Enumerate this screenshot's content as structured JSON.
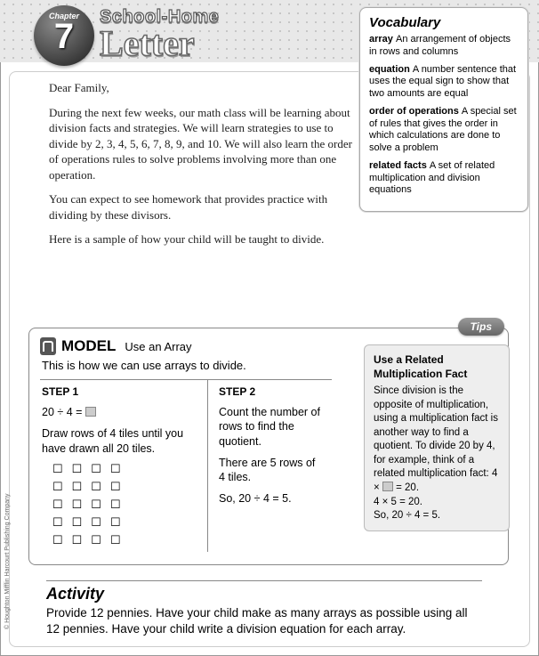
{
  "chapter": {
    "label": "Chapter",
    "number": "7"
  },
  "header": {
    "schoolhome": "School-Home",
    "letter": "Letter"
  },
  "vocab": {
    "title": "Vocabulary",
    "items": [
      {
        "term": "array",
        "def": "An arrangement of objects in rows and columns"
      },
      {
        "term": "equation",
        "def": "A number sentence that uses the equal sign to show that two amounts are equal"
      },
      {
        "term": "order of operations",
        "def": "A special set of rules that gives the order in which calculations are done to solve a problem"
      },
      {
        "term": "related facts",
        "def": "A set of related multiplication and division equations"
      }
    ]
  },
  "letter": {
    "greeting": "Dear Family,",
    "p1": "During the next few weeks, our math class will be learning about division facts and strategies. We will learn strategies to use to divide by 2, 3, 4, 5, 6, 7, 8, 9, and 10. We will also learn the order of operations rules to solve problems involving more than one operation.",
    "p2": "You can expect to see homework that provides practice with dividing by these divisors.",
    "p3": "Here is a sample of how your child will be taught to divide."
  },
  "model": {
    "title": "MODEL",
    "subtitle": "Use an Array",
    "intro": "This is how we can use arrays to divide.",
    "step1": {
      "label": "STEP 1",
      "eq": "20 ÷ 4 = ",
      "text": "Draw rows of 4 tiles until you have drawn all 20 tiles.",
      "array": {
        "rows": 5,
        "cols": 4
      }
    },
    "step2": {
      "label": "STEP 2",
      "p1": "Count the number of rows to find the quotient.",
      "p2": "There are 5 rows of 4 tiles.",
      "p3": "So, 20 ÷ 4 = 5."
    },
    "tips": {
      "badge": "Tips",
      "title": "Use a Related Multiplication Fact",
      "body1": "Since division is the opposite of multiplication, using a multiplication fact is another way to find a quotient. To divide 20 by 4, for example, think of a related multiplication fact: 4 × ",
      "body2": " = 20.",
      "line2": "4 × 5 = 20.",
      "line3": "So, 20 ÷ 4 = 5."
    }
  },
  "activity": {
    "title": "Activity",
    "text": "Provide 12 pennies. Have your child make as many arrays as possible using all 12 pennies. Have your child write a division equation for each array."
  },
  "copyright": "© Houghton Mifflin Harcourt Publishing Company"
}
